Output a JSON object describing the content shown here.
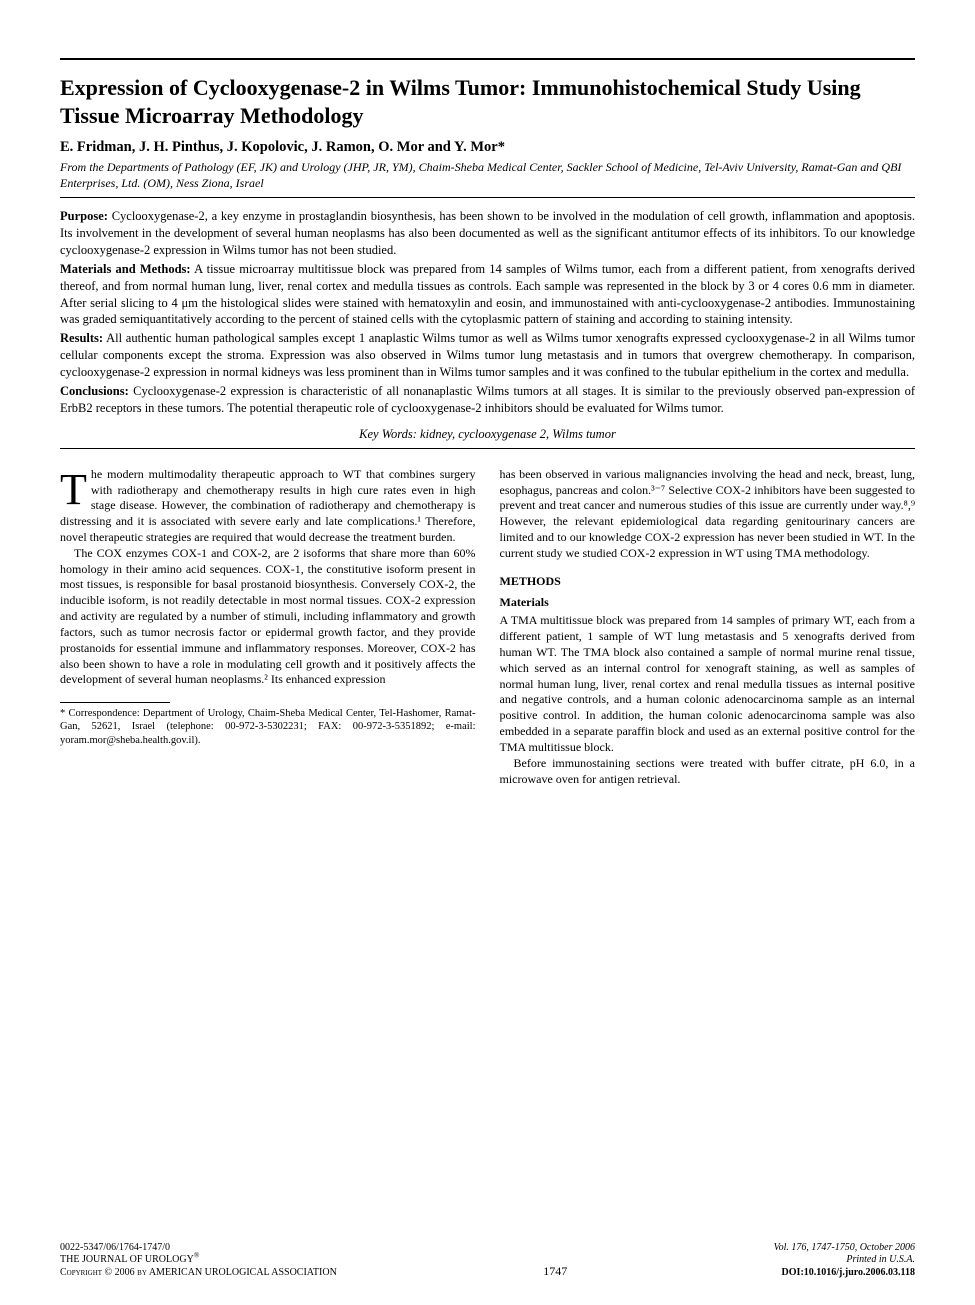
{
  "colors": {
    "text": "#000000",
    "background": "#ffffff",
    "rule": "#000000"
  },
  "typography": {
    "body_family": "Century Schoolbook, Georgia, serif",
    "title_size_pt": 22,
    "authors_size_pt": 14.5,
    "affiliation_size_pt": 12,
    "abstract_size_pt": 12.5,
    "body_size_pt": 12,
    "footnote_size_pt": 10.5,
    "footer_size_pt": 10
  },
  "title": "Expression of Cyclooxygenase-2 in Wilms Tumor: Immunohistochemical Study Using Tissue Microarray Methodology",
  "authors": "E. Fridman, J. H. Pinthus, J. Kopolovic, J. Ramon, O. Mor and Y. Mor*",
  "affiliation": "From the Departments of Pathology (EF, JK) and Urology (JHP, JR, YM), Chaim-Sheba Medical Center, Sackler School of Medicine, Tel-Aviv University, Ramat-Gan and QBI Enterprises, Ltd. (OM), Ness Ziona, Israel",
  "abstract": {
    "purpose_label": "Purpose:",
    "purpose": " Cyclooxygenase-2, a key enzyme in prostaglandin biosynthesis, has been shown to be involved in the modulation of cell growth, inflammation and apoptosis. Its involvement in the development of several human neoplasms has also been documented as well as the significant antitumor effects of its inhibitors. To our knowledge cyclooxygenase-2 expression in Wilms tumor has not been studied.",
    "methods_label": "Materials and Methods:",
    "methods": " A tissue microarray multitissue block was prepared from 14 samples of Wilms tumor, each from a different patient, from xenografts derived thereof, and from normal human lung, liver, renal cortex and medulla tissues as controls. Each sample was represented in the block by 3 or 4 cores 0.6 mm in diameter. After serial slicing to 4 μm the histological slides were stained with hematoxylin and eosin, and immunostained with anti-cyclooxygenase-2 antibodies. Immunostaining was graded semiquantitatively according to the percent of stained cells with the cytoplasmic pattern of staining and according to staining intensity.",
    "results_label": "Results:",
    "results": " All authentic human pathological samples except 1 anaplastic Wilms tumor as well as Wilms tumor xenografts expressed cyclooxygenase-2 in all Wilms tumor cellular components except the stroma. Expression was also observed in Wilms tumor lung metastasis and in tumors that overgrew chemotherapy. In comparison, cyclooxygenase-2 expression in normal kidneys was less prominent than in Wilms tumor samples and it was confined to the tubular epithelium in the cortex and medulla.",
    "conclusions_label": "Conclusions:",
    "conclusions": " Cyclooxygenase-2 expression is characteristic of all nonanaplastic Wilms tumors at all stages. It is similar to the previously observed pan-expression of ErbB2 receptors in these tumors. The potential therapeutic role of cyclooxygenase-2 inhibitors should be evaluated for Wilms tumor."
  },
  "keywords": "Key Words: kidney, cyclooxygenase 2, Wilms tumor",
  "body": {
    "col1_p1_dropcap": "T",
    "col1_p1": "he modern multimodality therapeutic approach to WT that combines surgery with radiotherapy and chemotherapy results in high cure rates even in high stage disease. However, the combination of radiotherapy and chemotherapy is distressing and it is associated with severe early and late complications.¹ Therefore, novel therapeutic strategies are required that would decrease the treatment burden.",
    "col1_p2": "The COX enzymes COX-1 and COX-2, are 2 isoforms that share more than 60% homology in their amino acid sequences. COX-1, the constitutive isoform present in most tissues, is responsible for basal prostanoid biosynthesis. Conversely COX-2, the inducible isoform, is not readily detectable in most normal tissues. COX-2 expression and activity are regulated by a number of stimuli, including inflammatory and growth factors, such as tumor necrosis factor or epidermal growth factor, and they provide prostanoids for essential immune and inflammatory responses. Moreover, COX-2 has also been shown to have a role in modulating cell growth and it positively affects the development of several human neoplasms.² Its enhanced expression",
    "col2_p1": "has been observed in various malignancies involving the head and neck, breast, lung, esophagus, pancreas and colon.³⁻⁷ Selective COX-2 inhibitors have been suggested to prevent and treat cancer and numerous studies of this issue are currently under way.⁸,⁹ However, the relevant epidemiological data regarding genitourinary cancers are limited and to our knowledge COX-2 expression has never been studied in WT. In the current study we studied COX-2 expression in WT using TMA methodology.",
    "methods_head": "METHODS",
    "materials_head": "Materials",
    "col2_p2": "A TMA multitissue block was prepared from 14 samples of primary WT, each from a different patient, 1 sample of WT lung metastasis and 5 xenografts derived from human WT. The TMA block also contained a sample of normal murine renal tissue, which served as an internal control for xenograft staining, as well as samples of normal human lung, liver, renal cortex and renal medulla tissues as internal positive and negative controls, and a human colonic adenocarcinoma sample as an internal positive control. In addition, the human colonic adenocarcinoma sample was also embedded in a separate paraffin block and used as an external positive control for the TMA multitissue block.",
    "col2_p3": "Before immunostaining sections were treated with buffer citrate, pH 6.0, in a microwave oven for antigen retrieval."
  },
  "footnote": "* Correspondence: Department of Urology, Chaim-Sheba Medical Center, Tel-Hashomer, Ramat-Gan, 52621, Israel (telephone: 00-972-3-5302231; FAX: 00-972-3-5351892; e-mail: yoram.mor@sheba.health.gov.il).",
  "footer": {
    "issn": "0022-5347/06/1764-1747/0",
    "journal": "THE JOURNAL OF UROLOGY",
    "reg": "®",
    "copyright": "Copyright © 2006 by AMERICAN UROLOGICAL ASSOCIATION",
    "page": "1747",
    "vol": "Vol. 176, 1747-1750, October 2006",
    "printed": "Printed in U.S.A.",
    "doi": "DOI:10.1016/j.juro.2006.03.118"
  }
}
